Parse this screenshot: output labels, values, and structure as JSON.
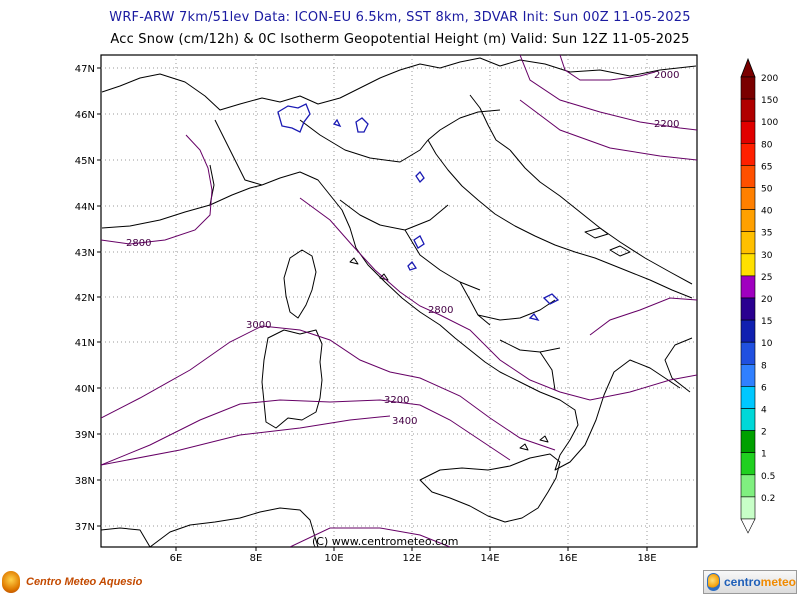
{
  "header": {
    "line1": "WRF-ARW 7km/51lev   Data: ICON-EU 6.5km, SST 8km, 3DVAR   Init: Sun 00Z 11-05-2025",
    "line2": "Acc Snow (cm/12h) & 0C Isotherm Geopotential Height (m)  Valid: Sun 12Z 11-05-2025"
  },
  "map": {
    "lat_labels": [
      "47N",
      "46N",
      "45N",
      "44N",
      "43N",
      "42N",
      "41N",
      "40N",
      "39N",
      "38N",
      "37N"
    ],
    "lon_labels": [
      "6E",
      "8E",
      "10E",
      "12E",
      "14E",
      "16E",
      "18E"
    ],
    "copyright": "(C) www.centrometeo.com",
    "contour_labels": [
      "2000",
      "2200",
      "2800",
      "2800",
      "3000",
      "3200",
      "3400"
    ]
  },
  "colorbar": {
    "labels": [
      "200",
      "150",
      "100",
      "80",
      "65",
      "50",
      "40",
      "35",
      "30",
      "25",
      "20",
      "15",
      "10",
      "8",
      "6",
      "4",
      "2",
      "1",
      "0.5",
      "0.2"
    ],
    "colors": [
      "#7a0000",
      "#b00000",
      "#e00000",
      "#ff2000",
      "#ff5000",
      "#ff8000",
      "#ffa000",
      "#ffc000",
      "#ffe000",
      "#a000c0",
      "#2a0090",
      "#1020b0",
      "#2050e0",
      "#3080ff",
      "#00c8ff",
      "#00d8d8",
      "#00a000",
      "#20d020",
      "#80f080",
      "#c8ffc8"
    ],
    "arrow_color": "#7a0000"
  },
  "logos": {
    "left": "Centro Meteo Aquesio",
    "right_a": "centro",
    "right_b": "meteo"
  }
}
